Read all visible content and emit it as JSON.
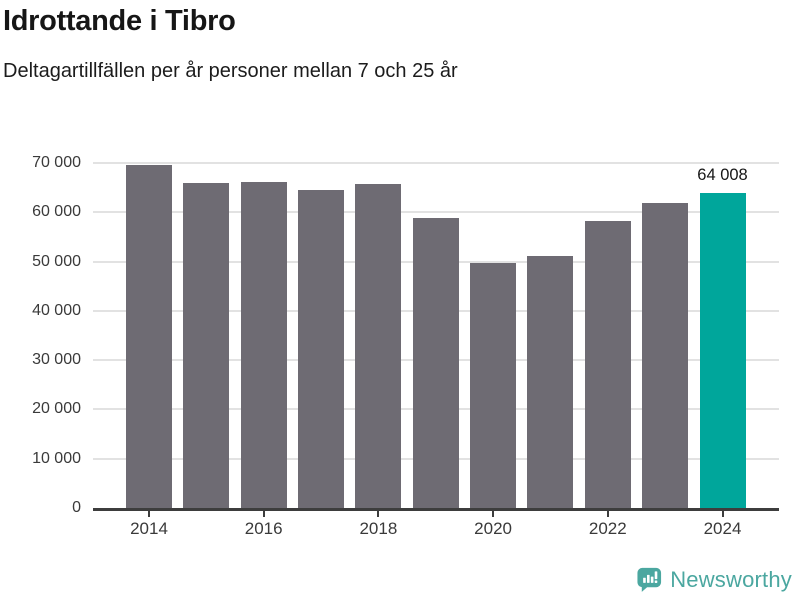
{
  "header": {
    "title": "Idrottande i Tibro",
    "subtitle": "Deltagartillfällen per år personer mellan 7 och 25 år"
  },
  "chart_data": {
    "type": "bar",
    "title": "Idrottande i Tibro",
    "subtitle": "Deltagartillfällen per år personer mellan 7 och 25 år",
    "categories": [
      2014,
      2015,
      2016,
      2017,
      2018,
      2019,
      2020,
      2021,
      2022,
      2023,
      2024
    ],
    "values": [
      69500,
      66000,
      66100,
      64500,
      65800,
      58900,
      49700,
      51200,
      58200,
      61900,
      64008
    ],
    "highlight_index": 10,
    "highlight_label": "64 008",
    "bar_color": "#6e6b73",
    "highlight_color": "#00a69b",
    "xlabel": "",
    "ylabel": "",
    "ylim": [
      0,
      70000
    ],
    "y_tick_values": [
      0,
      10000,
      20000,
      30000,
      40000,
      50000,
      60000,
      70000
    ],
    "y_tick_labels": [
      "0",
      "10 000",
      "20 000",
      "30 000",
      "40 000",
      "50 000",
      "60 000",
      "70 000"
    ],
    "x_tick_labels": [
      "2014",
      "2016",
      "2018",
      "2020",
      "2022",
      "2024"
    ],
    "grid": "horizontal",
    "legend": "none"
  },
  "footer": {
    "brand": "Newsworthy",
    "brand_color": "#4ba7a0",
    "logo_icon": "newsworthy-speech-bubble-chart-icon"
  }
}
